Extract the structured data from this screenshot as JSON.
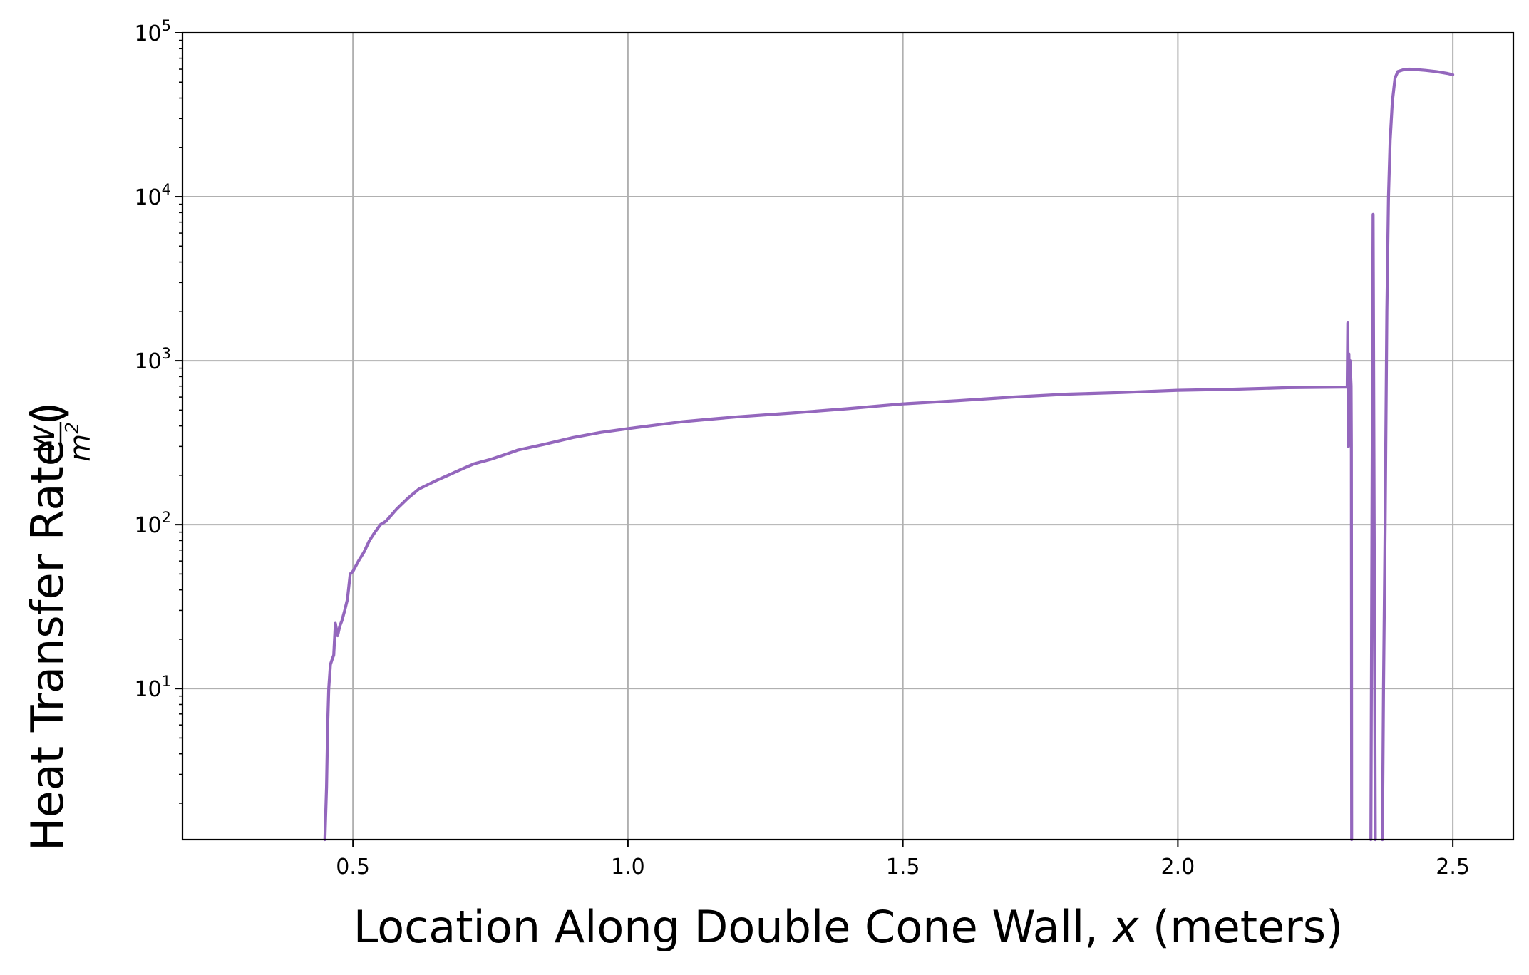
{
  "chart_data": {
    "type": "line",
    "xlabel_prefix": "Location Along Double Cone Wall, ",
    "xlabel_var": "x",
    "xlabel_suffix": " (meters)",
    "ylabel_text": "Heat Transfer Rate (",
    "ylabel_num": "W",
    "ylabel_den": "m",
    "ylabel_den_exp": "2",
    "ylabel_close": ")",
    "xlim": [
      0.19,
      2.61
    ],
    "ylim": [
      1.2,
      100000
    ],
    "yscale": "log",
    "grid": true,
    "xticks": [
      0.5,
      1.0,
      1.5,
      2.0,
      2.5
    ],
    "xtick_labels": [
      "0.5",
      "1.0",
      "1.5",
      "2.0",
      "2.5"
    ],
    "yticks": [
      10,
      100,
      1000,
      10000,
      100000
    ],
    "ytick_base": "10",
    "ytick_exponents": [
      "1",
      "2",
      "3",
      "4",
      "5"
    ],
    "line_color": "#9467bd",
    "grid_color": "#b0b0b0",
    "series": [
      {
        "x": [
          0.449,
          0.452,
          0.454,
          0.456,
          0.459,
          0.462,
          0.465,
          0.468,
          0.472,
          0.476,
          0.48,
          0.485,
          0.49,
          0.495,
          0.5,
          0.51,
          0.52,
          0.53,
          0.54,
          0.55,
          0.56,
          0.58,
          0.6,
          0.62,
          0.65,
          0.68,
          0.7,
          0.72,
          0.75,
          0.78,
          0.8,
          0.85,
          0.9,
          0.95,
          1.0,
          1.05,
          1.1,
          1.15,
          1.2,
          1.3,
          1.4,
          1.5,
          1.6,
          1.7,
          1.8,
          1.9,
          2.0,
          2.1,
          2.2,
          2.3,
          2.308,
          2.309,
          2.31,
          2.311,
          2.312,
          2.313,
          2.315,
          2.3155,
          2.316
        ],
        "y": [
          1.2,
          2.5,
          6,
          10,
          14,
          15,
          16,
          25,
          21,
          24,
          26,
          30,
          35,
          50,
          52,
          60,
          68,
          80,
          90,
          100,
          105,
          125,
          145,
          165,
          185,
          205,
          220,
          235,
          250,
          270,
          285,
          310,
          340,
          365,
          385,
          405,
          425,
          440,
          455,
          480,
          510,
          545,
          570,
          600,
          625,
          640,
          660,
          670,
          685,
          690,
          690,
          1700,
          300,
          1100,
          700,
          1000,
          700,
          300,
          1.2
        ]
      },
      {
        "x": [
          2.351,
          2.353,
          2.355,
          2.357,
          2.359
        ],
        "y": [
          1.2,
          100,
          7800,
          100,
          1.2
        ]
      },
      {
        "x": [
          2.372,
          2.374,
          2.377,
          2.38,
          2.383,
          2.386,
          2.39,
          2.395,
          2.4,
          2.41,
          2.42,
          2.43,
          2.45,
          2.47,
          2.49,
          2.5
        ],
        "y": [
          1.2,
          10,
          100,
          2000,
          10000,
          22000,
          38000,
          53000,
          58000,
          59500,
          60000,
          59800,
          59000,
          58000,
          56500,
          55500
        ]
      }
    ]
  }
}
